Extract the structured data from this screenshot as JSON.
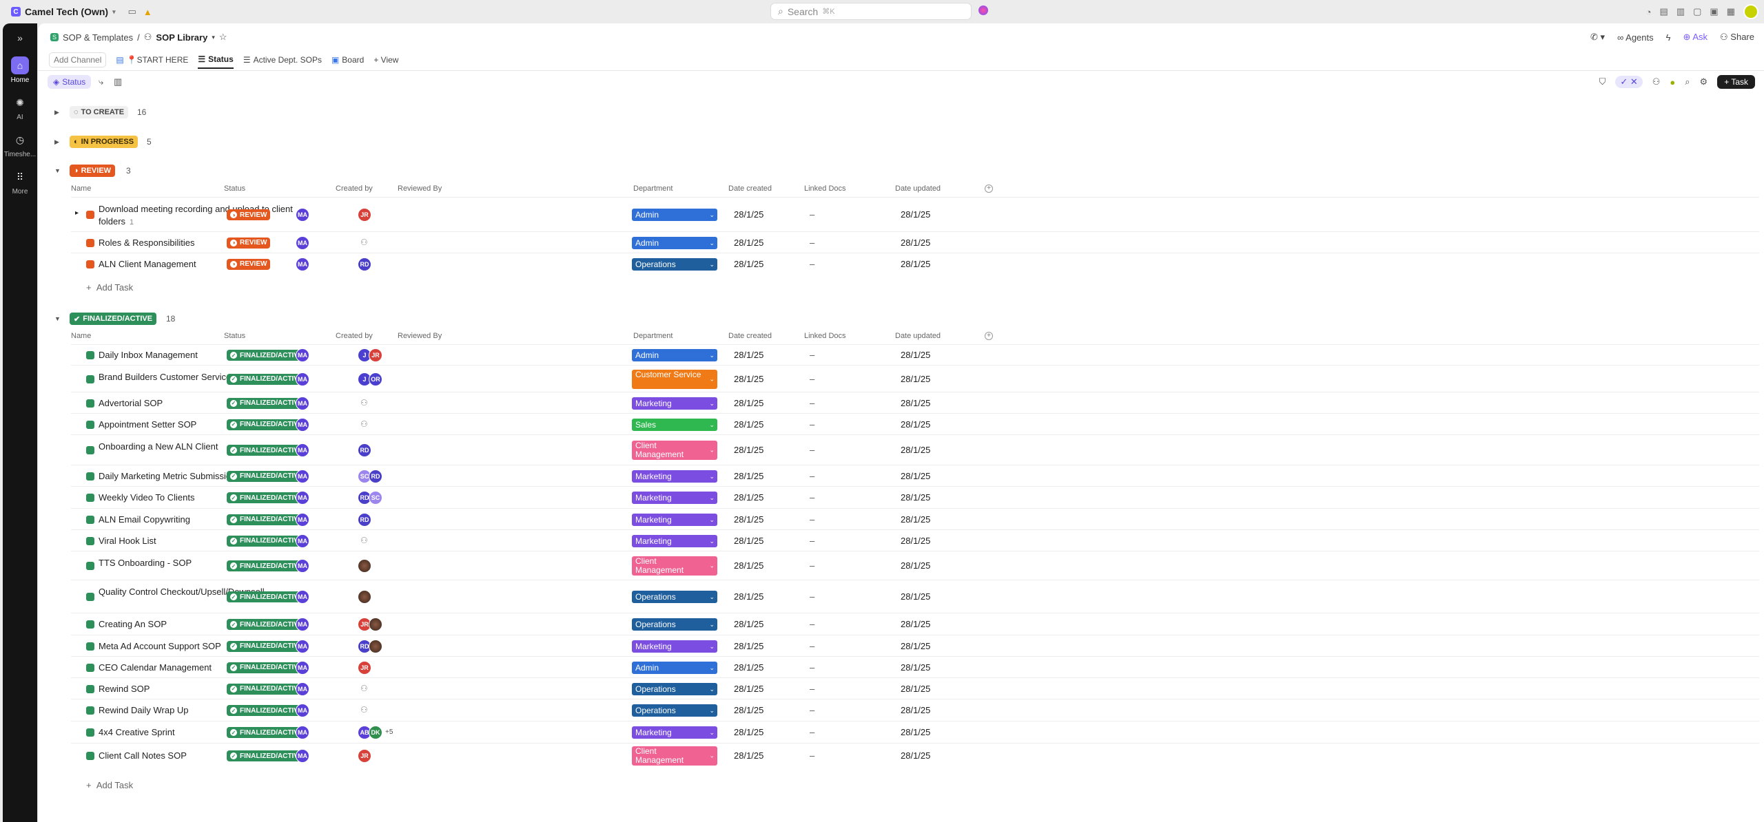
{
  "topbar": {
    "workspace": "Camel Tech (Own)",
    "search_placeholder": "Search",
    "search_shortcut": "⌘K"
  },
  "rail": [
    {
      "label": "Home",
      "icon": "home-icon"
    },
    {
      "label": "AI",
      "icon": "ai-icon"
    },
    {
      "label": "Timeshe...",
      "icon": "clock-icon"
    },
    {
      "label": "More",
      "icon": "grid-icon"
    }
  ],
  "breadcrumb": {
    "space": "SOP & Templates",
    "sep": "/",
    "list": "SOP Library"
  },
  "header_actions": {
    "agents": "Agents",
    "ask": "Ask",
    "share": "Share"
  },
  "tabs": {
    "add_channel": "Add Channel",
    "items": [
      "📍START HERE",
      "Status",
      "Active Dept. SOPs",
      "Board",
      "+ View"
    ]
  },
  "toolbar": {
    "group_label": "Status",
    "task_button": "+ Task"
  },
  "columns": [
    "Name",
    "Status",
    "Created by",
    "Reviewed By",
    "Department",
    "Date created",
    "Linked Docs",
    "Date updated"
  ],
  "colors": {
    "review": "#e4571e",
    "finalized": "#2d8f5a",
    "in_progress": "#f6c244",
    "accent": "#7b5cff"
  },
  "groups": {
    "to_create": {
      "label": "TO CREATE",
      "count": "16"
    },
    "in_progress": {
      "label": "IN PROGRESS",
      "count": "5"
    },
    "review": {
      "label": "REVIEW",
      "count": "3"
    },
    "finalized": {
      "label": "FINALIZED/ACTIVE",
      "count": "18"
    }
  },
  "add_task": "Add Task",
  "review_rows": [
    {
      "name": "Download meeting recording and upload to client folders",
      "sub": "1",
      "status": "REVIEW",
      "created": "MA",
      "reviewed": [
        "JR"
      ],
      "dept": "Admin",
      "date_created": "28/1/25",
      "linked": "–",
      "date_updated": "28/1/25"
    },
    {
      "name": "Roles & Responsibilities",
      "status": "REVIEW",
      "created": "MA",
      "reviewed": [],
      "dept": "Admin",
      "date_created": "28/1/25",
      "linked": "–",
      "date_updated": "28/1/25"
    },
    {
      "name": "ALN Client Management",
      "status": "REVIEW",
      "created": "MA",
      "reviewed": [
        "RD"
      ],
      "dept": "Operations",
      "date_created": "28/1/25",
      "linked": "–",
      "date_updated": "28/1/25"
    }
  ],
  "final_rows": [
    {
      "name": "Daily Inbox Management",
      "status": "FINALIZED/ACTIVE",
      "created": "MA",
      "reviewed": [
        "J",
        "JR"
      ],
      "dept": "Admin",
      "date_created": "28/1/25",
      "linked": "–",
      "date_updated": "28/1/25"
    },
    {
      "name": "Brand Builders Customer Service",
      "status": "FINALIZED/ACTIVE",
      "created": "MA",
      "reviewed": [
        "J",
        "OR"
      ],
      "dept": "Customer Service",
      "date_created": "28/1/25",
      "linked": "–",
      "date_updated": "28/1/25"
    },
    {
      "name": "Advertorial SOP",
      "status": "FINALIZED/ACTIVE",
      "created": "MA",
      "reviewed": [],
      "dept": "Marketing",
      "date_created": "28/1/25",
      "linked": "–",
      "date_updated": "28/1/25"
    },
    {
      "name": "Appointment Setter SOP",
      "status": "FINALIZED/ACTIVE",
      "created": "MA",
      "reviewed": [],
      "dept": "Sales",
      "date_created": "28/1/25",
      "linked": "–",
      "date_updated": "28/1/25"
    },
    {
      "name": "Onboarding a New ALN Client",
      "status": "FINALIZED/ACTIVE",
      "created": "MA",
      "reviewed": [
        "RD"
      ],
      "dept": "Client Management",
      "date_created": "28/1/25",
      "linked": "–",
      "date_updated": "28/1/25"
    },
    {
      "name": "Daily Marketing Metric Submission",
      "status": "FINALIZED/ACTIVE",
      "created": "MA",
      "reviewed": [
        "SC",
        "RD"
      ],
      "dept": "Marketing",
      "date_created": "28/1/25",
      "linked": "–",
      "date_updated": "28/1/25"
    },
    {
      "name": "Weekly Video To Clients",
      "status": "FINALIZED/ACTIVE",
      "created": "MA",
      "reviewed": [
        "RD",
        "SC"
      ],
      "dept": "Marketing",
      "date_created": "28/1/25",
      "linked": "–",
      "date_updated": "28/1/25"
    },
    {
      "name": "ALN Email Copywriting",
      "status": "FINALIZED/ACTIVE",
      "created": "MA",
      "reviewed": [
        "RD"
      ],
      "dept": "Marketing",
      "date_created": "28/1/25",
      "linked": "–",
      "date_updated": "28/1/25"
    },
    {
      "name": "Viral Hook List",
      "status": "FINALIZED/ACTIVE",
      "created": "MA",
      "reviewed": [],
      "dept": "Marketing",
      "date_created": "28/1/25",
      "linked": "–",
      "date_updated": "28/1/25"
    },
    {
      "name": "TTS Onboarding - SOP",
      "status": "FINALIZED/ACTIVE",
      "created": "MA",
      "reviewed": [
        ""
      ],
      "dept": "Client Management",
      "date_created": "28/1/25",
      "linked": "–",
      "date_updated": "28/1/25"
    },
    {
      "name": "Quality Control Checkout/Upsell/Downsell",
      "status": "FINALIZED/ACTIVE",
      "created": "MA",
      "reviewed": [
        ""
      ],
      "dept": "Operations",
      "date_created": "28/1/25",
      "linked": "–",
      "date_updated": "28/1/25"
    },
    {
      "name": "Creating An SOP",
      "status": "FINALIZED/ACTIVE",
      "created": "MA",
      "reviewed": [
        "JR",
        ""
      ],
      "dept": "Operations",
      "date_created": "28/1/25",
      "linked": "–",
      "date_updated": "28/1/25"
    },
    {
      "name": "Meta Ad Account Support SOP",
      "status": "FINALIZED/ACTIVE",
      "created": "MA",
      "reviewed": [
        "RD",
        ""
      ],
      "dept": "Marketing",
      "date_created": "28/1/25",
      "linked": "–",
      "date_updated": "28/1/25"
    },
    {
      "name": "CEO Calendar Management",
      "status": "FINALIZED/ACTIVE",
      "created": "MA",
      "reviewed": [
        "JR"
      ],
      "dept": "Admin",
      "date_created": "28/1/25",
      "linked": "–",
      "date_updated": "28/1/25"
    },
    {
      "name": "Rewind SOP",
      "status": "FINALIZED/ACTIVE",
      "created": "MA",
      "reviewed": [],
      "dept": "Operations",
      "date_created": "28/1/25",
      "linked": "–",
      "date_updated": "28/1/25"
    },
    {
      "name": "Rewind Daily Wrap Up",
      "status": "FINALIZED/ACTIVE",
      "created": "MA",
      "reviewed": [],
      "dept": "Operations",
      "date_created": "28/1/25",
      "linked": "–",
      "date_updated": "28/1/25"
    },
    {
      "name": "4x4 Creative Sprint",
      "status": "FINALIZED/ACTIVE",
      "created": "MA",
      "reviewed": [
        "AB",
        "DK"
      ],
      "reviewed_more": "+5",
      "dept": "Marketing",
      "date_created": "28/1/25",
      "linked": "–",
      "date_updated": "28/1/25"
    },
    {
      "name": "Client Call Notes SOP",
      "status": "FINALIZED/ACTIVE",
      "created": "MA",
      "reviewed": [
        "JR"
      ],
      "dept": "Client Management",
      "date_created": "28/1/25",
      "linked": "–",
      "date_updated": "28/1/25"
    }
  ]
}
